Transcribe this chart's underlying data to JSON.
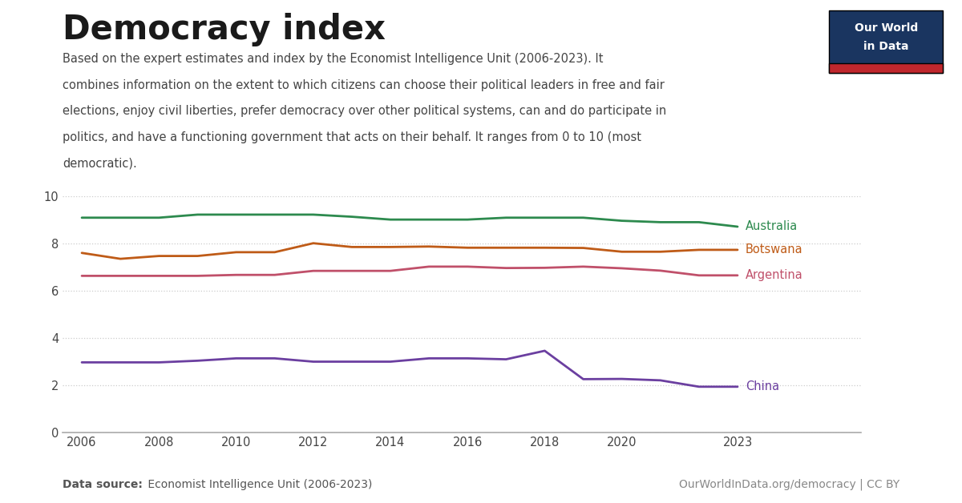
{
  "title": "Democracy index",
  "subtitle_lines": [
    "Based on the expert estimates and index by the Economist Intelligence Unit (2006-2023). It",
    "combines information on the extent to which citizens can choose their political leaders in free and fair",
    "elections, enjoy civil liberties, prefer democracy over other political systems, can and do participate in",
    "politics, and have a functioning government that acts on their behalf. It ranges from 0 to 10 (most",
    "democratic)."
  ],
  "footer_left_bold": "Data source:",
  "footer_left_normal": " Economist Intelligence Unit (2006-2023)",
  "footer_right": "OurWorldInData.org/democracy | CC BY",
  "background_color": "#ffffff",
  "series": [
    {
      "name": "Australia",
      "color": "#2d8a4e",
      "years": [
        2006,
        2007,
        2008,
        2009,
        2010,
        2011,
        2012,
        2013,
        2014,
        2015,
        2016,
        2017,
        2018,
        2019,
        2020,
        2021,
        2022,
        2023
      ],
      "values": [
        9.09,
        9.09,
        9.09,
        9.22,
        9.22,
        9.22,
        9.22,
        9.13,
        9.01,
        9.01,
        9.01,
        9.09,
        9.09,
        9.09,
        8.96,
        8.9,
        8.9,
        8.71
      ]
    },
    {
      "name": "Botswana",
      "color": "#bf5b17",
      "years": [
        2006,
        2007,
        2008,
        2009,
        2010,
        2011,
        2012,
        2013,
        2014,
        2015,
        2016,
        2017,
        2018,
        2019,
        2020,
        2021,
        2022,
        2023
      ],
      "values": [
        7.6,
        7.35,
        7.47,
        7.47,
        7.63,
        7.63,
        8.01,
        7.85,
        7.85,
        7.87,
        7.82,
        7.82,
        7.82,
        7.81,
        7.65,
        7.65,
        7.73,
        7.73
      ]
    },
    {
      "name": "Argentina",
      "color": "#c0506a",
      "years": [
        2006,
        2007,
        2008,
        2009,
        2010,
        2011,
        2012,
        2013,
        2014,
        2015,
        2016,
        2017,
        2018,
        2019,
        2020,
        2021,
        2022,
        2023
      ],
      "values": [
        6.63,
        6.63,
        6.63,
        6.63,
        6.67,
        6.67,
        6.84,
        6.84,
        6.84,
        7.02,
        7.02,
        6.96,
        6.97,
        7.02,
        6.95,
        6.85,
        6.65,
        6.65
      ]
    },
    {
      "name": "China",
      "color": "#6b3fa0",
      "years": [
        2006,
        2007,
        2008,
        2009,
        2010,
        2011,
        2012,
        2013,
        2014,
        2015,
        2016,
        2017,
        2018,
        2019,
        2020,
        2021,
        2022,
        2023
      ],
      "values": [
        2.97,
        2.97,
        2.97,
        3.04,
        3.14,
        3.14,
        3.0,
        3.0,
        3.0,
        3.14,
        3.14,
        3.1,
        3.46,
        2.26,
        2.27,
        2.21,
        1.94,
        1.94
      ]
    }
  ],
  "xlim": [
    2006,
    2023
  ],
  "ylim": [
    0,
    10
  ],
  "yticks": [
    0,
    2,
    4,
    6,
    8,
    10
  ],
  "xticks": [
    2006,
    2008,
    2010,
    2012,
    2014,
    2016,
    2018,
    2020,
    2023
  ],
  "logo_bg": "#1a3560",
  "logo_bar": "#c0272d",
  "logo_line1": "Our World",
  "logo_line2": "in Data"
}
